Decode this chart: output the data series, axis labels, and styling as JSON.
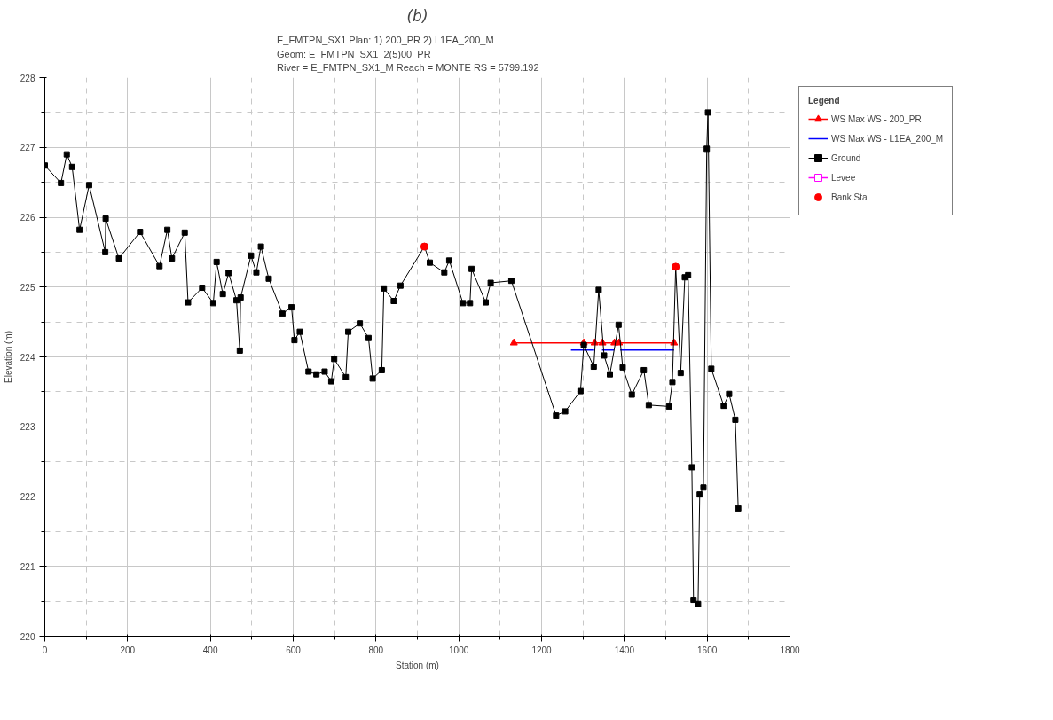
{
  "chart_data": {
    "type": "line",
    "title": "(b)",
    "subtitle": "E_FMTPN_SX1       Plan:    1) 200_PR    2) L1EA_200_M\nGeom: E_FMTPN_SX1_2(5)00_PR\nRiver = E_FMTPN_SX1_M   Reach = MONTE      RS = 5799.192",
    "xlabel": "Station (m)",
    "ylabel": "Elevation (m)",
    "legend_title": "Legend",
    "xlim": [
      0,
      1800
    ],
    "xticks": [
      0,
      200,
      400,
      600,
      800,
      1000,
      1200,
      1400,
      1600,
      1800
    ],
    "ylim": [
      220,
      228
    ],
    "yticks": [
      220,
      221,
      222,
      223,
      224,
      225,
      226,
      227,
      228
    ],
    "grid": true,
    "legend": "top right",
    "series": [
      {
        "name": "WS Max WS - 200_PR",
        "color": "#ff0000",
        "marker": "triangle",
        "x": [
          1133,
          1302,
          1328,
          1347,
          1376,
          1387,
          1520
        ],
        "values": [
          224.2,
          224.2,
          224.2,
          224.2,
          224.2,
          224.2,
          224.2
        ]
      },
      {
        "name": "WS Max WS - L1EA_200_M",
        "color": "#0000ff",
        "marker": "none",
        "x": [
          1271,
          1327,
          1336,
          1346,
          1375,
          1382,
          1390,
          1520
        ],
        "values": [
          224.1,
          224.1,
          null,
          224.1,
          224.1,
          null,
          224.1,
          224.1
        ]
      },
      {
        "name": "Ground",
        "color": "#000000",
        "marker": "square",
        "x": [
          0,
          39,
          53,
          66,
          84,
          107,
          146,
          147,
          179,
          230,
          277,
          296,
          307,
          338,
          346,
          380,
          407,
          415,
          430,
          444,
          463,
          471,
          473,
          498,
          511,
          522,
          541,
          574,
          596,
          603,
          616,
          637,
          656,
          676,
          692,
          699,
          727,
          733,
          761,
          782,
          792,
          814,
          819,
          843,
          859,
          917,
          930,
          965,
          977,
          1010,
          1027,
          1031,
          1065,
          1077,
          1127,
          1235,
          1257,
          1294,
          1302,
          1326,
          1338,
          1351,
          1365,
          1386,
          1396,
          1418,
          1447,
          1459,
          1508,
          1516,
          1524,
          1536,
          1546,
          1554,
          1563,
          1567,
          1578,
          1582,
          1591,
          1599,
          1602,
          1610,
          1640,
          1653,
          1668,
          1675
        ],
        "values": [
          226.74,
          226.49,
          226.9,
          226.72,
          225.82,
          226.46,
          225.5,
          225.98,
          225.41,
          225.79,
          225.3,
          225.82,
          225.41,
          225.78,
          224.78,
          224.99,
          224.77,
          225.36,
          224.9,
          225.2,
          224.81,
          224.09,
          224.85,
          225.45,
          225.21,
          225.58,
          225.12,
          224.62,
          224.71,
          224.24,
          224.36,
          223.79,
          223.75,
          223.79,
          223.65,
          223.97,
          223.71,
          224.36,
          224.48,
          224.27,
          223.69,
          223.81,
          224.98,
          224.8,
          225.02,
          225.58,
          225.35,
          225.21,
          225.38,
          224.77,
          224.77,
          225.26,
          224.78,
          225.06,
          225.09,
          223.16,
          223.22,
          223.51,
          224.17,
          223.86,
          224.96,
          224.02,
          223.75,
          224.46,
          223.85,
          223.46,
          223.81,
          223.31,
          223.29,
          223.64,
          225.29,
          223.77,
          225.14,
          225.17,
          222.42,
          220.52,
          220.46,
          222.03,
          222.13,
          226.98,
          227.5,
          223.83,
          223.3,
          223.47,
          223.1,
          221.83
        ]
      },
      {
        "name": "Levee",
        "color": "#ff00ff",
        "marker": "square"
      },
      {
        "name": "Bank Sta",
        "type": "scatter",
        "color": "#ff0000",
        "marker": "circle",
        "x": [
          917,
          1524
        ],
        "values": [
          225.58,
          225.29
        ]
      }
    ]
  }
}
